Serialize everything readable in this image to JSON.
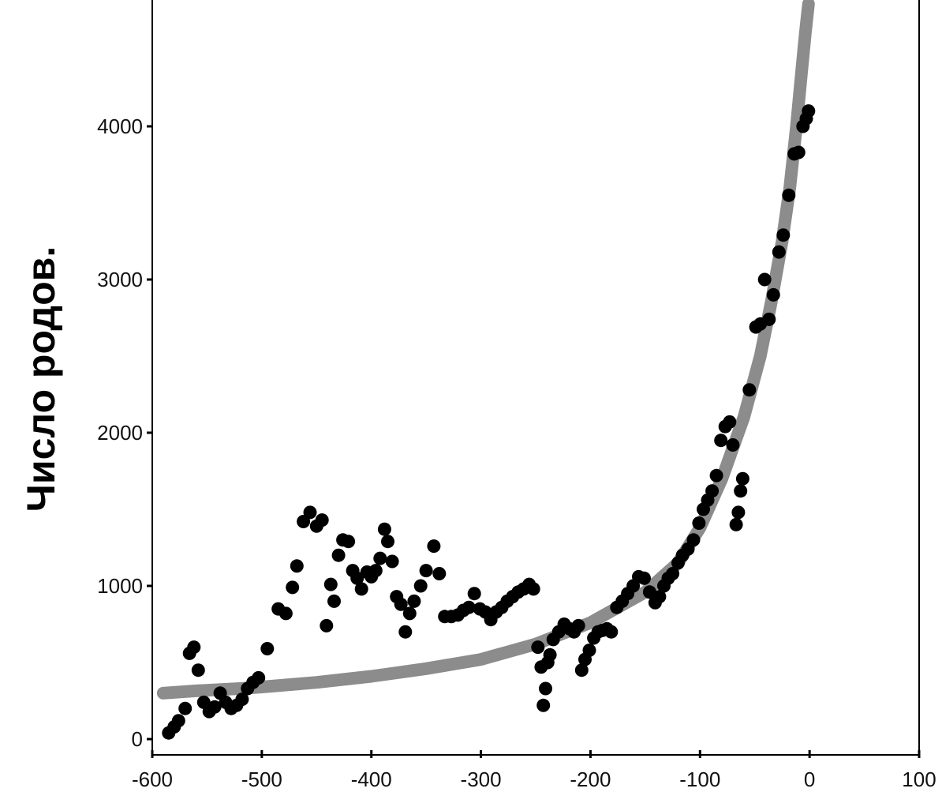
{
  "chart_data": {
    "type": "scatter",
    "title": "",
    "xlabel": "",
    "ylabel": "Число родов.",
    "xlim": [
      -600,
      100
    ],
    "ylim": [
      0,
      4800
    ],
    "xticks": [
      -600,
      -500,
      -400,
      -300,
      -200,
      -100,
      0,
      100
    ],
    "xtick_labels": [
      "-600",
      "-500",
      "-400",
      "-300",
      "-200",
      "-100",
      "0",
      "100"
    ],
    "yticks": [
      0,
      1000,
      2000,
      3000,
      4000
    ],
    "ytick_labels": [
      "0",
      "1000",
      "2000",
      "3000",
      "4000"
    ],
    "grid": false,
    "legend": "none",
    "series": [
      {
        "kind": "points",
        "color": "#000000",
        "points": [
          [
            -585,
            40
          ],
          [
            -580,
            80
          ],
          [
            -576,
            120
          ],
          [
            -570,
            200
          ],
          [
            -566,
            560
          ],
          [
            -562,
            600
          ],
          [
            -558,
            450
          ],
          [
            -553,
            240
          ],
          [
            -548,
            180
          ],
          [
            -543,
            210
          ],
          [
            -538,
            300
          ],
          [
            -533,
            240
          ],
          [
            -528,
            200
          ],
          [
            -523,
            220
          ],
          [
            -518,
            260
          ],
          [
            -513,
            330
          ],
          [
            -508,
            370
          ],
          [
            -503,
            400
          ],
          [
            -495,
            590
          ],
          [
            -485,
            850
          ],
          [
            -478,
            820
          ],
          [
            -472,
            990
          ],
          [
            -468,
            1130
          ],
          [
            -462,
            1420
          ],
          [
            -456,
            1480
          ],
          [
            -450,
            1390
          ],
          [
            -445,
            1430
          ],
          [
            -441,
            740
          ],
          [
            -437,
            1010
          ],
          [
            -434,
            900
          ],
          [
            -430,
            1200
          ],
          [
            -426,
            1300
          ],
          [
            -421,
            1290
          ],
          [
            -417,
            1100
          ],
          [
            -413,
            1050
          ],
          [
            -409,
            980
          ],
          [
            -404,
            1090
          ],
          [
            -400,
            1060
          ],
          [
            -396,
            1100
          ],
          [
            -392,
            1180
          ],
          [
            -388,
            1370
          ],
          [
            -385,
            1290
          ],
          [
            -381,
            1160
          ],
          [
            -377,
            930
          ],
          [
            -373,
            880
          ],
          [
            -369,
            700
          ],
          [
            -365,
            820
          ],
          [
            -361,
            900
          ],
          [
            -355,
            1000
          ],
          [
            -350,
            1100
          ],
          [
            -343,
            1260
          ],
          [
            -338,
            1080
          ],
          [
            -333,
            800
          ],
          [
            -327,
            800
          ],
          [
            -321,
            810
          ],
          [
            -316,
            840
          ],
          [
            -311,
            860
          ],
          [
            -306,
            950
          ],
          [
            -301,
            850
          ],
          [
            -296,
            830
          ],
          [
            -291,
            780
          ],
          [
            -286,
            830
          ],
          [
            -281,
            860
          ],
          [
            -276,
            900
          ],
          [
            -271,
            930
          ],
          [
            -266,
            960
          ],
          [
            -261,
            980
          ],
          [
            -256,
            1010
          ],
          [
            -252,
            980
          ],
          [
            -248,
            600
          ],
          [
            -245,
            470
          ],
          [
            -243,
            220
          ],
          [
            -241,
            330
          ],
          [
            -239,
            500
          ],
          [
            -237,
            550
          ],
          [
            -234,
            650
          ],
          [
            -229,
            700
          ],
          [
            -224,
            750
          ],
          [
            -219,
            720
          ],
          [
            -215,
            700
          ],
          [
            -211,
            740
          ],
          [
            -208,
            450
          ],
          [
            -205,
            520
          ],
          [
            -201,
            580
          ],
          [
            -197,
            660
          ],
          [
            -193,
            700
          ],
          [
            -189,
            710
          ],
          [
            -185,
            720
          ],
          [
            -181,
            700
          ],
          [
            -176,
            860
          ],
          [
            -171,
            900
          ],
          [
            -166,
            950
          ],
          [
            -161,
            1000
          ],
          [
            -156,
            1060
          ],
          [
            -151,
            1050
          ],
          [
            -146,
            960
          ],
          [
            -141,
            890
          ],
          [
            -137,
            930
          ],
          [
            -133,
            1000
          ],
          [
            -129,
            1050
          ],
          [
            -125,
            1080
          ],
          [
            -120,
            1150
          ],
          [
            -116,
            1200
          ],
          [
            -111,
            1240
          ],
          [
            -106,
            1300
          ],
          [
            -101,
            1410
          ],
          [
            -97,
            1500
          ],
          [
            -93,
            1560
          ],
          [
            -89,
            1620
          ],
          [
            -85,
            1720
          ],
          [
            -81,
            1950
          ],
          [
            -77,
            2040
          ],
          [
            -73,
            2070
          ],
          [
            -70,
            1920
          ],
          [
            -67,
            1400
          ],
          [
            -65,
            1480
          ],
          [
            -63,
            1620
          ],
          [
            -61,
            1700
          ],
          [
            -55,
            2280
          ],
          [
            -49,
            2690
          ],
          [
            -45,
            2710
          ],
          [
            -41,
            3000
          ],
          [
            -37,
            2740
          ],
          [
            -33,
            2900
          ],
          [
            -28,
            3180
          ],
          [
            -24,
            3290
          ],
          [
            -19,
            3550
          ],
          [
            -14,
            3820
          ],
          [
            -10,
            3830
          ],
          [
            -6,
            4000
          ],
          [
            -3,
            4050
          ],
          [
            -1,
            4100
          ]
        ]
      },
      {
        "kind": "curve",
        "color": "#8c8c8c",
        "points": [
          [
            -590,
            300
          ],
          [
            -560,
            315
          ],
          [
            -520,
            330
          ],
          [
            -500,
            340
          ],
          [
            -450,
            370
          ],
          [
            -400,
            410
          ],
          [
            -350,
            460
          ],
          [
            -300,
            520
          ],
          [
            -250,
            620
          ],
          [
            -200,
            760
          ],
          [
            -150,
            960
          ],
          [
            -120,
            1150
          ],
          [
            -100,
            1380
          ],
          [
            -80,
            1700
          ],
          [
            -60,
            2100
          ],
          [
            -45,
            2500
          ],
          [
            -35,
            2850
          ],
          [
            -25,
            3250
          ],
          [
            -18,
            3600
          ],
          [
            -12,
            4000
          ],
          [
            -8,
            4300
          ],
          [
            -4,
            4600
          ],
          [
            -1,
            4800
          ]
        ]
      }
    ]
  }
}
